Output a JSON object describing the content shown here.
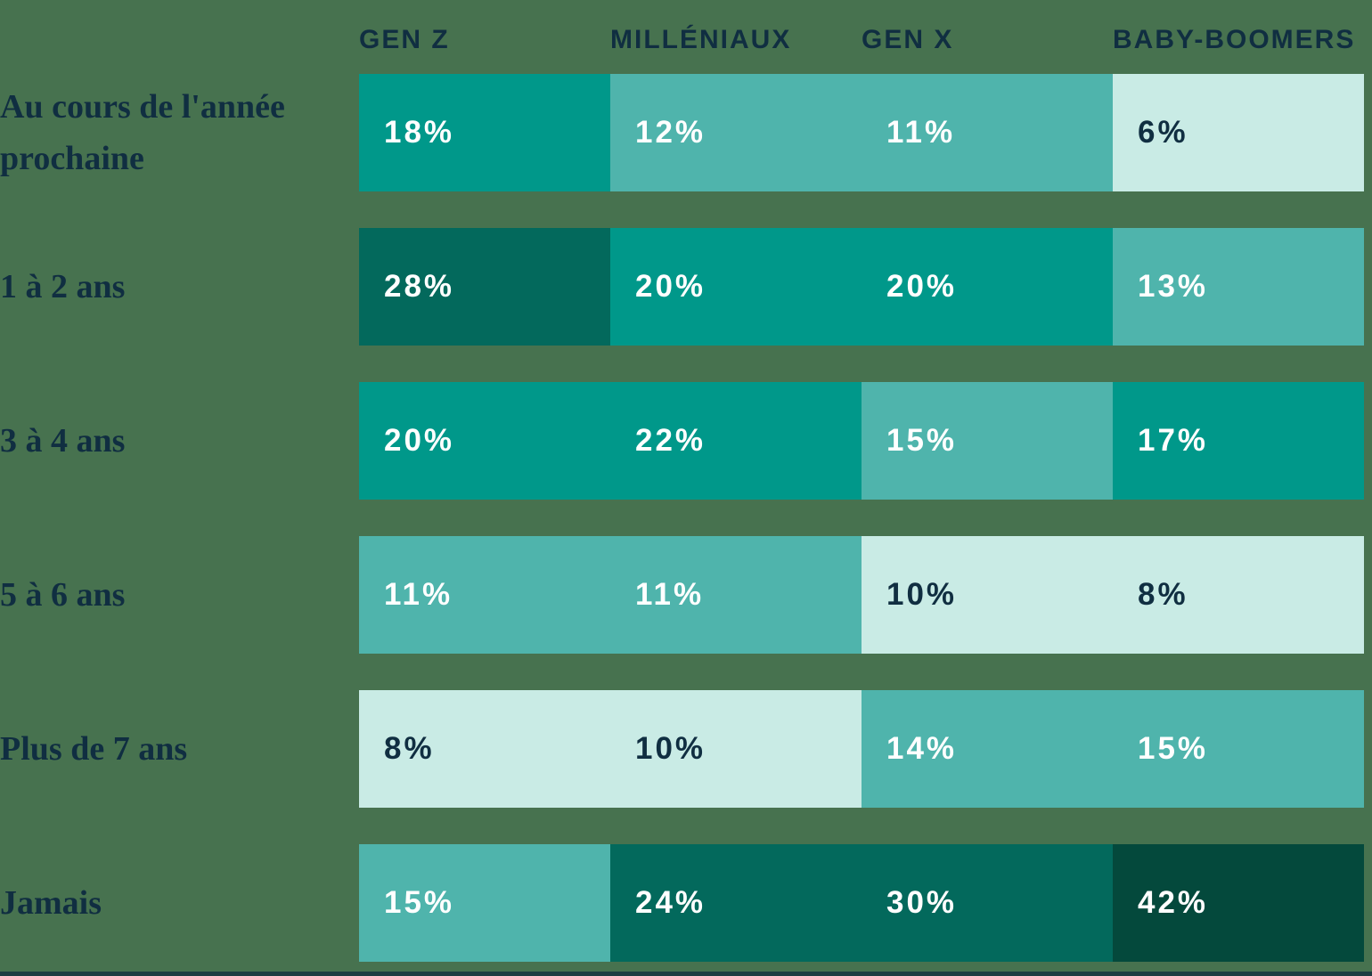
{
  "chart_data": {
    "type": "heatmap",
    "title": "",
    "columns": [
      "GEN Z",
      "MILLÉNIAUX",
      "GEN X",
      "BABY-BOOMERS"
    ],
    "rows": [
      {
        "label": "Au cours de l'année prochaine",
        "values": [
          18,
          12,
          11,
          6
        ]
      },
      {
        "label": "1 à 2 ans",
        "values": [
          28,
          20,
          20,
          13
        ]
      },
      {
        "label": "3 à 4 ans",
        "values": [
          20,
          22,
          15,
          17
        ]
      },
      {
        "label": "5 à 6 ans",
        "values": [
          11,
          11,
          10,
          8
        ]
      },
      {
        "label": "Plus de 7 ans",
        "values": [
          8,
          10,
          14,
          15
        ]
      },
      {
        "label": "Jamais",
        "values": [
          15,
          24,
          30,
          42
        ]
      }
    ],
    "value_suffix": "%",
    "legend": "none",
    "grid": "off",
    "color_scale": {
      "thresholds": [
        10,
        15,
        22,
        30
      ],
      "shades": [
        "#C9EBE5",
        "#4FB4AC",
        "#00988A",
        "#03695C",
        "#04493C"
      ],
      "text_on_lightest": "#102E41",
      "text_on_colored": "#FFFFFF"
    },
    "colors": {
      "background": "#47724F",
      "heading_text": "#102E41",
      "bottom_strip": "#1E3D42"
    }
  }
}
